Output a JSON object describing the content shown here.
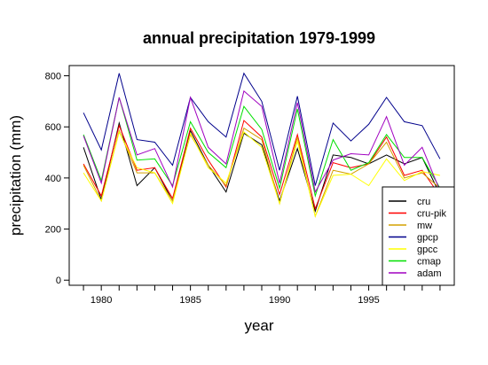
{
  "chart_data": {
    "type": "line",
    "title": "annual precipitation 1979-1999",
    "xlabel": "year",
    "ylabel": "precipitation (mm)",
    "xlim": [
      1978.2,
      1999.8
    ],
    "ylim": [
      -20,
      840
    ],
    "x_ticks": [
      1980,
      1985,
      1990,
      1995
    ],
    "y_ticks": [
      0,
      200,
      400,
      600,
      800
    ],
    "grid": false,
    "legend_position": "bottom-right",
    "x": [
      1979,
      1980,
      1981,
      1982,
      1983,
      1984,
      1985,
      1986,
      1987,
      1988,
      1989,
      1990,
      1991,
      1992,
      1993,
      1994,
      1995,
      1996,
      1997,
      1998,
      1999
    ],
    "series": [
      {
        "name": "cru",
        "color": "#000000",
        "values": [
          520,
          315,
          615,
          370,
          440,
          310,
          585,
          450,
          345,
          575,
          530,
          310,
          515,
          270,
          490,
          480,
          455,
          490,
          455,
          480,
          335
        ]
      },
      {
        "name": "cru-pik",
        "color": "#ff0000",
        "values": [
          455,
          330,
          605,
          430,
          440,
          320,
          595,
          470,
          365,
          625,
          560,
          335,
          570,
          280,
          460,
          440,
          455,
          560,
          410,
          430,
          330
        ]
      },
      {
        "name": "mw",
        "color": "#d4a000",
        "values": [
          450,
          310,
          585,
          420,
          420,
          310,
          570,
          450,
          370,
          595,
          550,
          300,
          560,
          250,
          430,
          415,
          455,
          540,
          400,
          420,
          360
        ]
      },
      {
        "name": "gpcp",
        "color": "#00008b",
        "values": [
          655,
          510,
          810,
          550,
          540,
          450,
          715,
          620,
          560,
          810,
          700,
          430,
          720,
          370,
          615,
          545,
          610,
          715,
          620,
          605,
          475
        ]
      },
      {
        "name": "gpcc",
        "color": "#ffff00",
        "values": [
          420,
          310,
          580,
          440,
          420,
          300,
          575,
          440,
          380,
          580,
          520,
          300,
          545,
          250,
          410,
          415,
          370,
          475,
          390,
          425,
          410
        ]
      },
      {
        "name": "cmap",
        "color": "#00e000",
        "values": [
          570,
          390,
          715,
          470,
          475,
          370,
          620,
          500,
          440,
          680,
          590,
          360,
          670,
          330,
          550,
          430,
          460,
          570,
          480,
          480,
          360
        ]
      },
      {
        "name": "adam",
        "color": "#a000c0",
        "values": [
          565,
          380,
          715,
          490,
          515,
          365,
          715,
          520,
          455,
          740,
          680,
          380,
          695,
          345,
          470,
          495,
          490,
          640,
          450,
          520,
          350
        ]
      }
    ]
  }
}
